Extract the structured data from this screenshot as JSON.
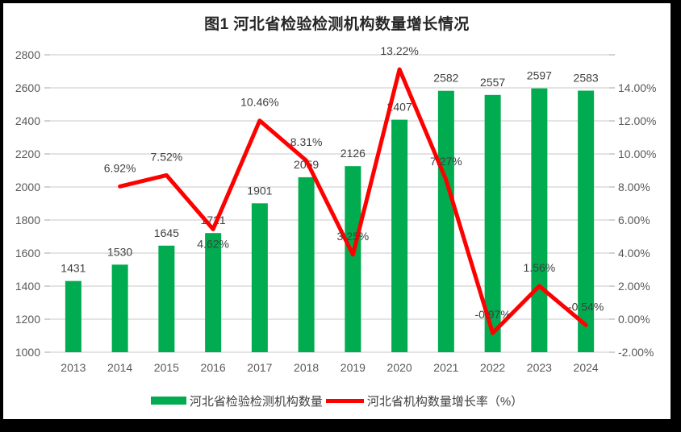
{
  "frame": {
    "background": "#000000",
    "inner_background": "#FFFFFF"
  },
  "chart_data": {
    "type": "bar+line combo",
    "title": "图1 河北省检验检测机构数量增长情况",
    "categories": [
      "2013",
      "2014",
      "2015",
      "2016",
      "2017",
      "2018",
      "2019",
      "2020",
      "2021",
      "2022",
      "2023",
      "2024"
    ],
    "series": [
      {
        "name": "河北省检验检测机构数量",
        "type": "bar",
        "axis": "left",
        "color": "#00AC4F",
        "values": [
          1431,
          1530,
          1645,
          1721,
          1901,
          2059,
          2126,
          2407,
          2582,
          2557,
          2597,
          2583
        ],
        "value_labels": [
          "1431",
          "1530",
          "1645",
          "1721",
          "1901",
          "2059",
          "2126",
          "2407",
          "2582",
          "2557",
          "2597",
          "2583"
        ]
      },
      {
        "name": "河北省机构数量增长率（%）",
        "type": "line",
        "axis": "right",
        "color": "#FE0000",
        "values": [
          null,
          6.92,
          7.52,
          4.62,
          10.46,
          8.31,
          3.25,
          13.22,
          7.27,
          -0.97,
          1.56,
          -0.54
        ],
        "value_labels": [
          "",
          "6.92%",
          "7.52%",
          "4.62%",
          "10.46%",
          "8.31%",
          "3.25%",
          "13.22%",
          "7.27%",
          "-0.97%",
          "1.56%",
          "-0.54%"
        ],
        "label_positions": [
          "above",
          "above",
          "above",
          "below",
          "above",
          "above",
          "above",
          "above",
          "above",
          "above",
          "above",
          "above"
        ]
      }
    ],
    "left_axis": {
      "min": 1000,
      "max": 2800,
      "step": 200,
      "tick_labels": [
        "1000",
        "1200",
        "1400",
        "1600",
        "1800",
        "2000",
        "2200",
        "2400",
        "2600",
        "2800"
      ]
    },
    "right_axis": {
      "min": -2,
      "max": 14,
      "step": 2,
      "tick_labels": [
        "-2.00%",
        "0.00%",
        "2.00%",
        "4.00%",
        "6.00%",
        "8.00%",
        "10.00%",
        "12.00%",
        "14.00%"
      ]
    },
    "grid": true,
    "legend_position": "bottom",
    "colors": {
      "grid": "#DCDCDC",
      "tick": "#BFBFBF",
      "axis_text": "#595959",
      "label_text": "#404040",
      "title_text": "#262626"
    }
  }
}
